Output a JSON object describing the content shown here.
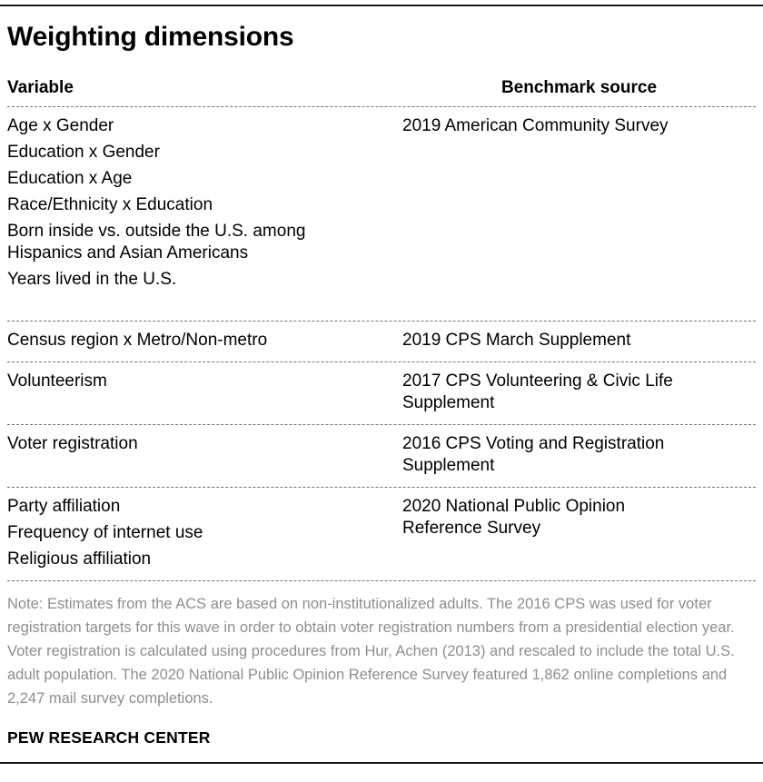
{
  "title": "Weighting dimensions",
  "table": {
    "headers": {
      "variable": "Variable",
      "benchmark": "Benchmark source"
    },
    "groups": [
      {
        "variables": [
          "Age x Gender",
          "Education x Gender",
          "Education x Age",
          "Race/Ethnicity x Education",
          "Born inside vs. outside the U.S. among Hispanics and Asian Americans",
          "Years lived in the U.S."
        ],
        "benchmark": "2019 American Community Survey"
      },
      {
        "variables": [
          "Census region x Metro/Non-metro"
        ],
        "benchmark": "2019 CPS March Supplement"
      },
      {
        "variables": [
          "Volunteerism"
        ],
        "benchmark": "2017 CPS Volunteering & Civic Life Supplement"
      },
      {
        "variables": [
          "Voter registration"
        ],
        "benchmark": "2016 CPS Voting and Registration Supplement"
      },
      {
        "variables": [
          "Party affiliation",
          "Frequency of internet use",
          "Religious affiliation"
        ],
        "benchmark": "2020 National Public Opinion Reference Survey"
      }
    ]
  },
  "note": "Note: Estimates from the ACS are based on non-institutionalized adults. The 2016 CPS was used for voter registration targets for this wave in order to obtain voter registration numbers from a presidential election year. Voter registration is calculated using procedures from Hur, Achen (2013) and rescaled to include the total U.S. adult population. The 2020 National Public Opinion Reference Survey featured 1,862 online completions and 2,247 mail survey completions.",
  "footer": "PEW RESEARCH CENTER",
  "colors": {
    "text": "#000000",
    "note_text": "#8e8e8e",
    "rule": "#1a1a1a",
    "divider": "#737373",
    "background": "#ffffff"
  }
}
